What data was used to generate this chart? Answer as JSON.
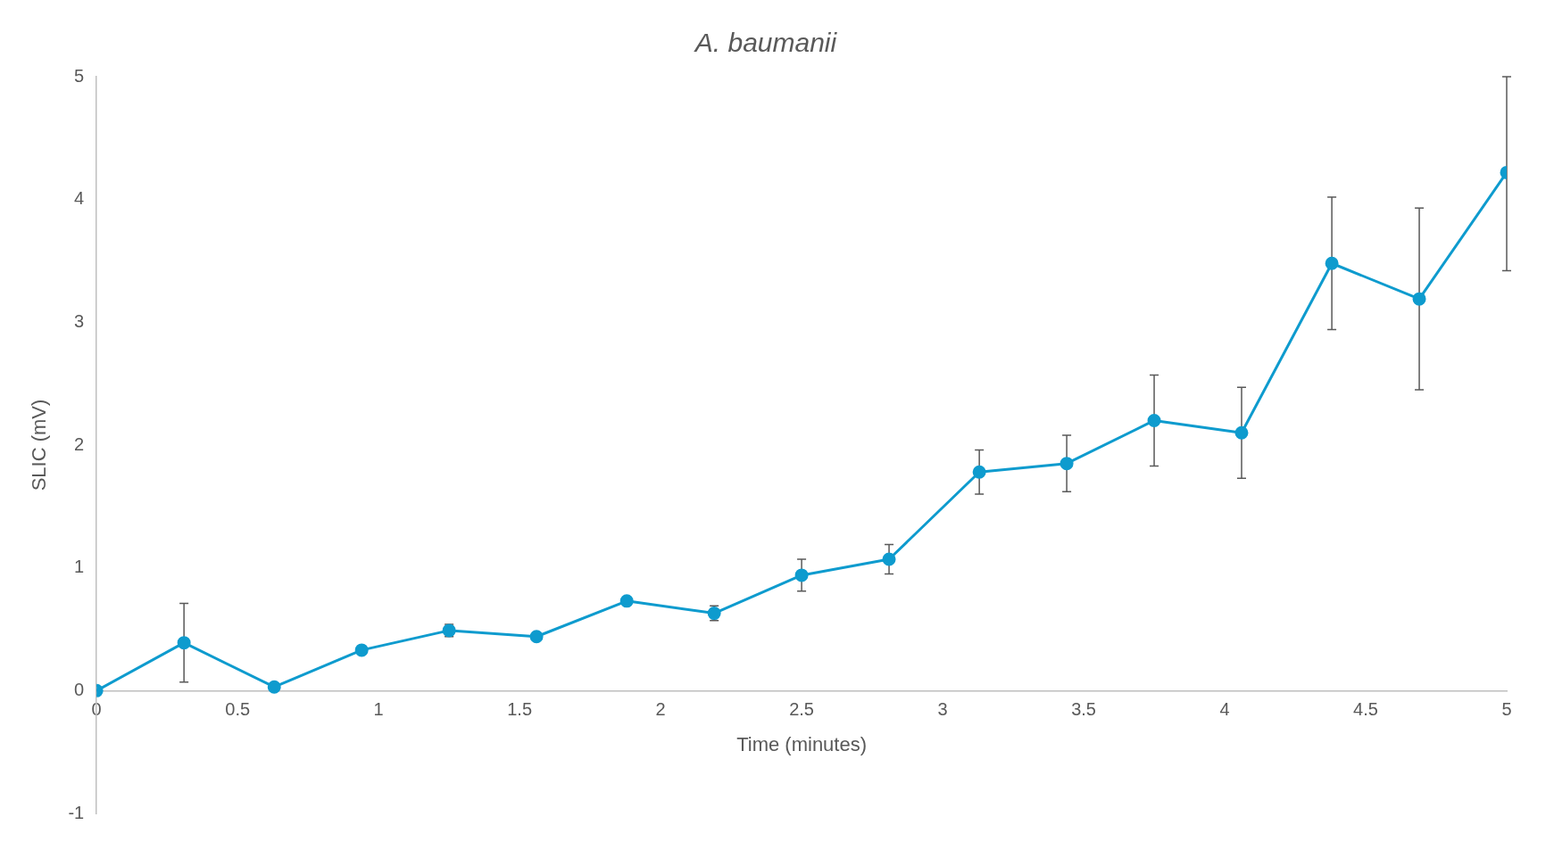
{
  "chart_data": {
    "type": "line",
    "title": "A. baumanii",
    "xlabel": "Time (minutes)",
    "ylabel": "SLIC (mV)",
    "x": [
      0,
      0.31,
      0.63,
      0.94,
      1.25,
      1.56,
      1.88,
      2.19,
      2.5,
      2.81,
      3.13,
      3.44,
      3.75,
      4.06,
      4.38,
      4.69,
      5
    ],
    "series": [
      {
        "color": "#0e9bce",
        "values": [
          0,
          0.39,
          0.03,
          0.33,
          0.49,
          0.44,
          0.73,
          0.63,
          0.94,
          1.07,
          1.78,
          1.85,
          2.2,
          2.1,
          3.48,
          3.19,
          4.22
        ],
        "errors": [
          null,
          0.32,
          null,
          null,
          0.05,
          null,
          null,
          0.06,
          0.13,
          0.12,
          0.18,
          0.23,
          0.37,
          0.37,
          0.54,
          0.74,
          [
            3.42,
            5
          ]
        ]
      }
    ],
    "xlim": [
      0,
      5
    ],
    "xticks": [
      0,
      0.5,
      1,
      1.5,
      2,
      2.5,
      3,
      3.5,
      4,
      4.5,
      5
    ],
    "ylim": [
      -1,
      5
    ],
    "yticks": [
      -1,
      0,
      1,
      2,
      3,
      4,
      5
    ],
    "grid": false,
    "legend": false,
    "marker": "circle",
    "line_style": "solid"
  }
}
